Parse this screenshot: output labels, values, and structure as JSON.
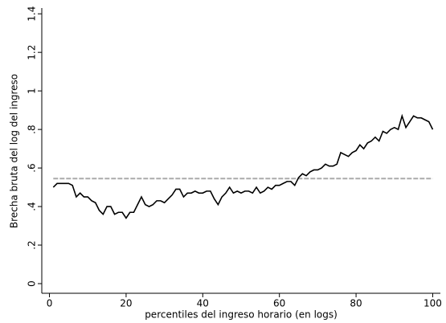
{
  "chart_data": {
    "type": "line",
    "x_label": "percentiles del ingreso horario (en logs)",
    "y_label": "Brecha bruta del log del ingreso",
    "x": [
      1,
      2,
      3,
      4,
      5,
      6,
      7,
      8,
      9,
      10,
      11,
      12,
      13,
      14,
      15,
      16,
      17,
      18,
      19,
      20,
      21,
      22,
      23,
      24,
      25,
      26,
      27,
      28,
      29,
      30,
      31,
      32,
      33,
      34,
      35,
      36,
      37,
      38,
      39,
      40,
      41,
      42,
      43,
      44,
      45,
      46,
      47,
      48,
      49,
      50,
      51,
      52,
      53,
      54,
      55,
      56,
      57,
      58,
      59,
      60,
      61,
      62,
      63,
      64,
      65,
      66,
      67,
      68,
      69,
      70,
      71,
      72,
      73,
      74,
      75,
      76,
      77,
      78,
      79,
      80,
      81,
      82,
      83,
      84,
      85,
      86,
      87,
      88,
      89,
      90,
      91,
      92,
      93,
      94,
      95,
      96,
      97,
      98,
      99,
      100
    ],
    "series": [
      {
        "color": "#000000",
        "values": [
          0.5,
          0.52,
          0.52,
          0.52,
          0.52,
          0.51,
          0.45,
          0.47,
          0.45,
          0.45,
          0.43,
          0.42,
          0.38,
          0.36,
          0.4,
          0.4,
          0.36,
          0.37,
          0.37,
          0.34,
          0.37,
          0.37,
          0.41,
          0.45,
          0.41,
          0.4,
          0.41,
          0.43,
          0.43,
          0.42,
          0.44,
          0.46,
          0.49,
          0.49,
          0.45,
          0.47,
          0.47,
          0.48,
          0.47,
          0.47,
          0.48,
          0.48,
          0.44,
          0.41,
          0.45,
          0.47,
          0.5,
          0.47,
          0.48,
          0.47,
          0.48,
          0.48,
          0.47,
          0.5,
          0.47,
          0.48,
          0.5,
          0.49,
          0.51,
          0.51,
          0.52,
          0.53,
          0.53,
          0.51,
          0.55,
          0.57,
          0.56,
          0.58,
          0.59,
          0.59,
          0.6,
          0.62,
          0.61,
          0.61,
          0.62,
          0.68,
          0.67,
          0.66,
          0.68,
          0.69,
          0.72,
          0.7,
          0.73,
          0.74,
          0.76,
          0.74,
          0.79,
          0.78,
          0.8,
          0.81,
          0.8,
          0.87,
          0.81,
          0.84,
          0.87,
          0.86,
          0.86,
          0.85,
          0.84,
          0.8
        ]
      }
    ],
    "reference_line": {
      "value": 0.545,
      "color": "#aaaaaa"
    },
    "xlim": [
      -2,
      102
    ],
    "ylim": [
      -0.05,
      1.43
    ],
    "xticks": [
      0,
      20,
      40,
      60,
      80,
      100
    ],
    "yticks": [
      0,
      {
        "value": 0.2,
        "label": ".2"
      },
      {
        "value": 0.4,
        "label": ".4"
      },
      {
        "value": 0.6,
        "label": ".6"
      },
      {
        "value": 0.8,
        "label": ".8"
      },
      1,
      {
        "value": 1.2,
        "label": "1.2"
      },
      {
        "value": 1.4,
        "label": "1.4"
      }
    ]
  }
}
